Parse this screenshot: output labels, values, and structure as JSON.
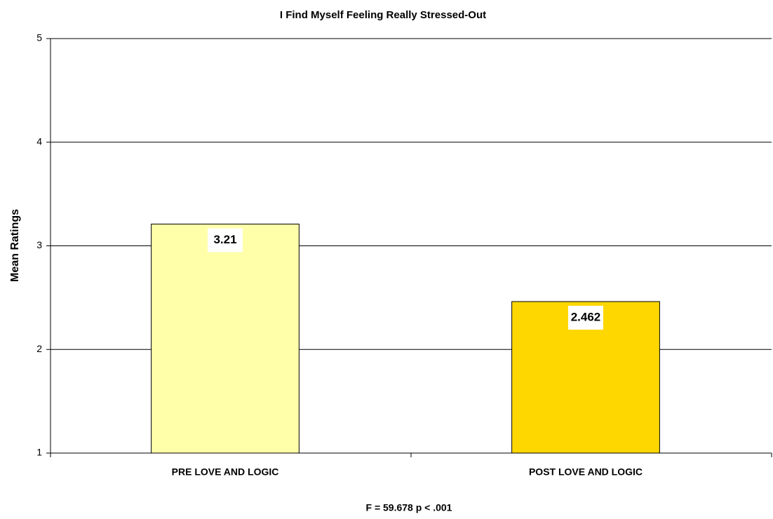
{
  "chart_data": {
    "type": "bar",
    "title": "I Find Myself Feeling Really Stressed-Out",
    "ylabel": "Mean Ratings",
    "xlabel": "F = 59.678 p < .001",
    "categories": [
      "PRE LOVE AND LOGIC",
      "POST LOVE AND LOGIC"
    ],
    "values": [
      3.21,
      2.462
    ],
    "colors": [
      "#ffffaa",
      "#ffd700"
    ],
    "ylim": [
      1,
      5
    ],
    "yticks": [
      1,
      2,
      3,
      4,
      5
    ],
    "grid": true
  }
}
